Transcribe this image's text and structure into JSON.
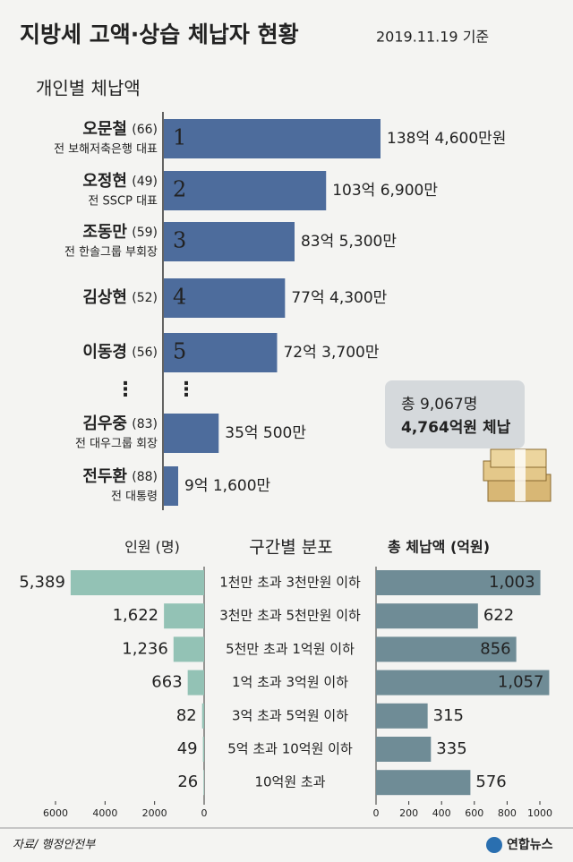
{
  "title": "지방세 고액·상습 체납자 현황",
  "date": "2019.11.19 기준",
  "source": "자료/ 행정안전부",
  "logo": "연합뉴스",
  "chart_data": [
    {
      "type": "bar",
      "orientation": "horizontal",
      "title": "개인별 체납액",
      "color": "#4d6c9c",
      "categories": [
        "오문철",
        "오정현",
        "조동만",
        "김상현",
        "이동경",
        "김우중",
        "전두환"
      ],
      "ages": [
        "(66)",
        "(49)",
        "(59)",
        "(52)",
        "(56)",
        "(83)",
        "(88)"
      ],
      "descriptions": [
        "전 보해저축은행 대표",
        "전 SSCP 대표",
        "전 한솔그룹 부회장",
        null,
        null,
        "전 대우그룹 회장",
        "전 대통령"
      ],
      "ranks": [
        1,
        2,
        3,
        4,
        5,
        null,
        null
      ],
      "values": [
        138.46,
        103.69,
        83.53,
        77.43,
        72.37,
        35.05,
        9.16
      ],
      "value_labels": [
        "138억 4,600만원",
        "103억 6,900만",
        "83억 5,300만",
        "77억 4,300만",
        "72억 3,700만",
        "35억 500만",
        "9억 1,600만"
      ],
      "annotation": [
        "총 9,067명",
        "4,764억원 체납"
      ]
    },
    {
      "type": "bar",
      "orientation": "horizontal",
      "title": "구간별 분포",
      "categories": [
        "1천만 초과 3천만원 이하",
        "3천만 초과 5천만원 이하",
        "5천만 초과 1억원 이하",
        "1억 초과 3억원 이하",
        "3억 초과 5억원 이하",
        "5억 초과 10억원 이하",
        "10억원 초과"
      ],
      "series": [
        {
          "name": "인원 (명)",
          "color": "#93c2b5",
          "values": [
            5389,
            1622,
            1236,
            663,
            82,
            49,
            26
          ],
          "value_labels": [
            "5,389",
            "1,622",
            "1,236",
            "663",
            "82",
            "49",
            "26"
          ]
        },
        {
          "name": "총 체납액 (억원)",
          "color": "#6f8c96",
          "axis": "x2",
          "values": [
            1003,
            622,
            856,
            1057,
            315,
            335,
            576
          ],
          "value_labels": [
            "1,003",
            "622",
            "856",
            "1,057",
            "315",
            "335",
            "576"
          ]
        }
      ],
      "xlim": [
        0,
        6000
      ],
      "xticks": [
        6000,
        4000,
        2000,
        0
      ],
      "x2lim": [
        0,
        1000
      ],
      "x2ticks": [
        0,
        200,
        400,
        600,
        800,
        1000
      ]
    }
  ]
}
